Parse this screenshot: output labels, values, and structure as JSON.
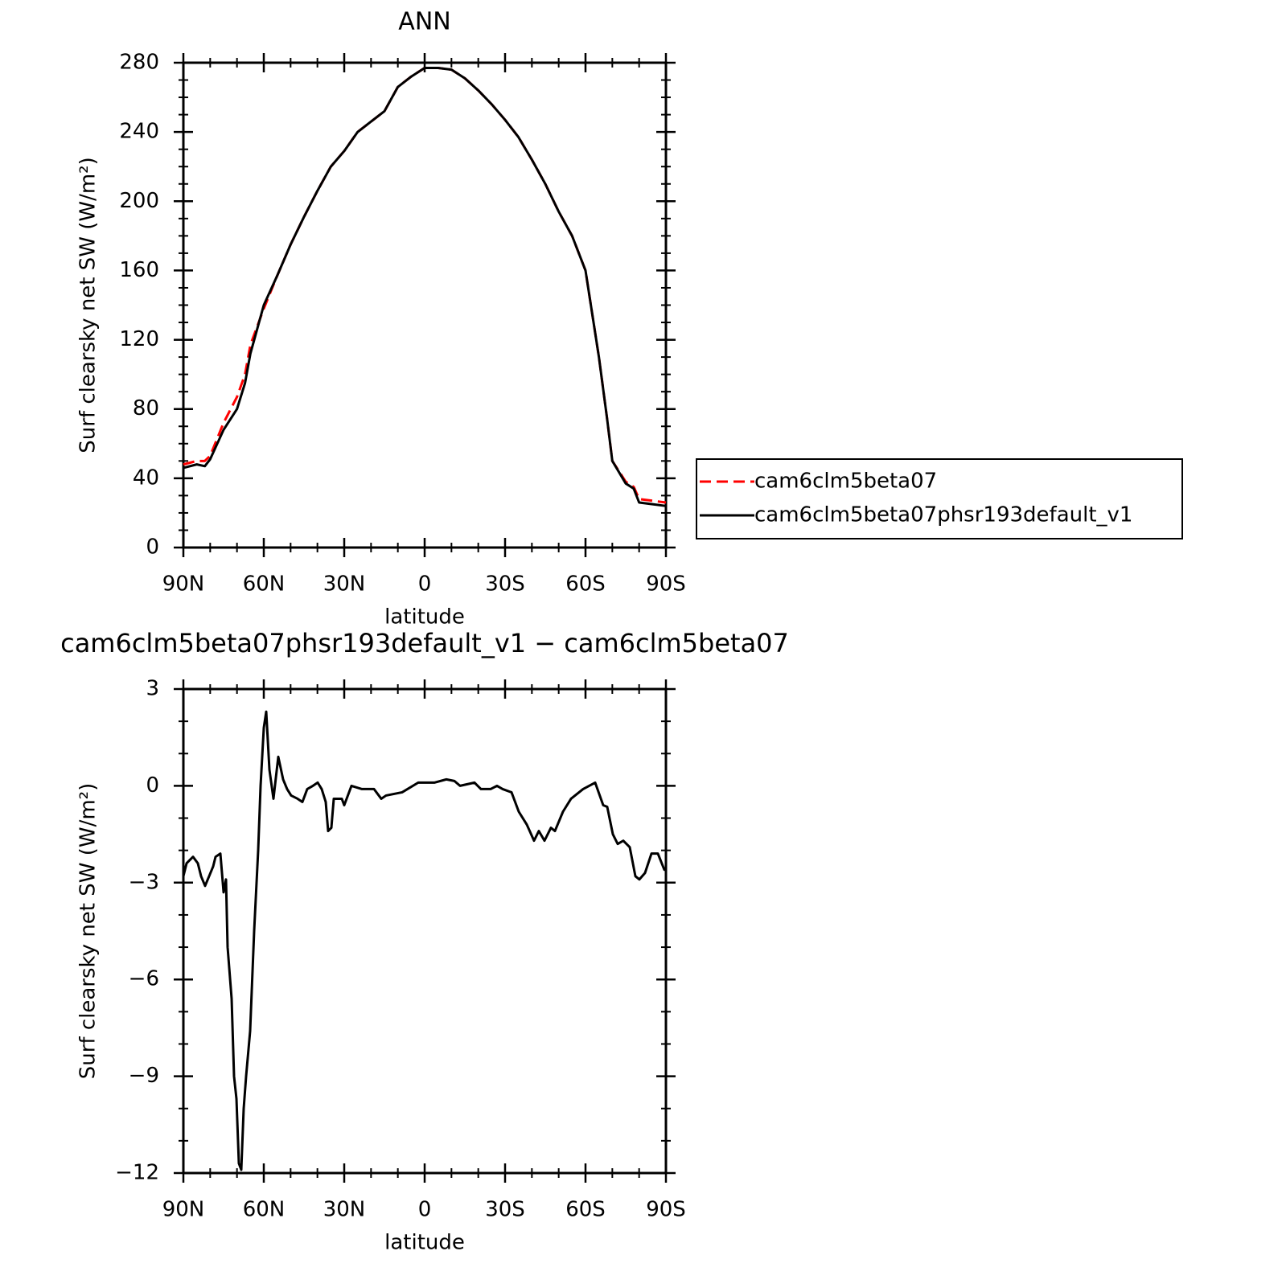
{
  "chart_data": [
    {
      "type": "line",
      "title": "ANN",
      "xlabel": "latitude",
      "ylabel": "Surf clearsky net SW (W/m²)",
      "x": [
        90,
        85,
        82,
        80,
        75,
        70,
        67,
        65,
        60,
        55,
        50,
        45,
        40,
        35,
        30,
        25,
        20,
        15,
        10,
        5,
        0,
        -5,
        -10,
        -15,
        -20,
        -25,
        -30,
        -35,
        -40,
        -45,
        -50,
        -55,
        -60,
        -63,
        -65,
        -68,
        -70,
        -75,
        -78,
        -80,
        -85,
        -90
      ],
      "series": [
        {
          "name": "cam6clm5beta07",
          "color": "#ff0000",
          "style": "dashed",
          "values": [
            48,
            50,
            50,
            53,
            72,
            87,
            100,
            117,
            138,
            157,
            175,
            191,
            206,
            220,
            229,
            240,
            246,
            252,
            266,
            272,
            277,
            277,
            276,
            271,
            264,
            256,
            247,
            237,
            224,
            210,
            194,
            180,
            160,
            130,
            110,
            75,
            50,
            38,
            35,
            28,
            27,
            26
          ]
        },
        {
          "name": "cam6clm5beta07phsr193default_v1",
          "color": "#000000",
          "style": "solid",
          "values": [
            46,
            48,
            47,
            51,
            68,
            80,
            95,
            112,
            140,
            157,
            175,
            191,
            206,
            220,
            229,
            240,
            246,
            252,
            266,
            272,
            277,
            277,
            276,
            271,
            264,
            256,
            247,
            237,
            224,
            210,
            194,
            180,
            160,
            130,
            110,
            75,
            50,
            37,
            34,
            26,
            25,
            24
          ]
        }
      ],
      "xlim": [
        90,
        -90
      ],
      "xticks": [
        {
          "value": 90,
          "label": "90N"
        },
        {
          "value": 60,
          "label": "60N"
        },
        {
          "value": 30,
          "label": "30N"
        },
        0,
        {
          "value": -30,
          "label": "30S"
        },
        {
          "value": -60,
          "label": "60S"
        },
        {
          "value": -90,
          "label": "90S"
        }
      ],
      "ylim": [
        0,
        280
      ],
      "yticks": [
        0,
        40,
        80,
        120,
        160,
        200,
        240,
        280
      ],
      "legend": "right"
    },
    {
      "type": "line",
      "title": "cam6clm5beta07phsr193default_v1 − cam6clm5beta07",
      "xlabel": "latitude",
      "ylabel": "Surf clearsky net SW (W/m²)",
      "x": [
        90,
        88.8,
        86.4,
        84.6,
        83.4,
        81.9,
        80.4,
        78.9,
        78,
        76.2,
        75,
        74.1,
        73.5,
        72,
        71.1,
        70.2,
        69.3,
        68.4,
        67.5,
        66.6,
        65.1,
        63.6,
        62.1,
        61.2,
        60,
        59.1,
        57.9,
        56.4,
        54.6,
        52.8,
        51.3,
        49.8,
        47.4,
        45.6,
        43.8,
        41.7,
        39.9,
        38.4,
        36.9,
        36,
        34.8,
        33.9,
        30.9,
        30,
        27.3,
        23.4,
        18.9,
        16.2,
        14.4,
        8.4,
        2.4,
        0,
        -3.6,
        -8.1,
        -11.1,
        -13.2,
        -18.6,
        -21,
        -24.6,
        -27,
        -29.1,
        -32.4,
        -35.1,
        -38.1,
        -40.8,
        -42.6,
        -44.7,
        -47.1,
        -48.6,
        -51.6,
        -54.6,
        -59.1,
        -63.6,
        -66.6,
        -68.1,
        -70.2,
        -72,
        -74.1,
        -76.5,
        -78.6,
        -80.1,
        -82.2,
        -84.6,
        -87,
        -89.4,
        -90
      ],
      "series": [
        {
          "name": "cam6clm5beta07phsr193default_v1 − cam6clm5beta07",
          "color": "#000000",
          "style": "solid",
          "values": [
            -2.8,
            -2.4,
            -2.2,
            -2.4,
            -2.8,
            -3.1,
            -2.8,
            -2.5,
            -2.2,
            -2.1,
            -3.3,
            -2.9,
            -5,
            -6.6,
            -9,
            -9.7,
            -11.7,
            -11.9,
            -10,
            -9,
            -7.6,
            -4.5,
            -2,
            0,
            1.8,
            2.3,
            0.5,
            -0.4,
            0.9,
            0.2,
            -0.1,
            -0.3,
            -0.4,
            -0.5,
            -0.1,
            0,
            0.1,
            -0.1,
            -0.5,
            -1.4,
            -1.3,
            -0.4,
            -0.4,
            -0.6,
            0,
            -0.1,
            -0.1,
            -0.4,
            -0.3,
            -0.2,
            0.1,
            0.1,
            0.1,
            0.2,
            0.15,
            0,
            0.1,
            -0.1,
            -0.1,
            0,
            -0.1,
            -0.2,
            -0.8,
            -1.2,
            -1.7,
            -1.4,
            -1.7,
            -1.3,
            -1.4,
            -0.8,
            -0.4,
            -0.1,
            0.1,
            -0.6,
            -0.65,
            -1.5,
            -1.8,
            -1.7,
            -1.9,
            -2.8,
            -2.9,
            -2.7,
            -2.1,
            -2.1,
            -2.6,
            -2.6
          ]
        }
      ],
      "xlim": [
        90,
        -90
      ],
      "xticks": [
        {
          "value": 90,
          "label": "90N"
        },
        {
          "value": 60,
          "label": "60N"
        },
        {
          "value": 30,
          "label": "30N"
        },
        0,
        {
          "value": -30,
          "label": "30S"
        },
        {
          "value": -60,
          "label": "60S"
        },
        {
          "value": -90,
          "label": "90S"
        }
      ],
      "ylim": [
        -12,
        3
      ],
      "yticks": [
        {
          "value": -12,
          "label": "−12"
        },
        {
          "value": -9,
          "label": "−9"
        },
        {
          "value": -6,
          "label": "−6"
        },
        {
          "value": -3,
          "label": "−3"
        },
        0,
        3
      ]
    }
  ]
}
